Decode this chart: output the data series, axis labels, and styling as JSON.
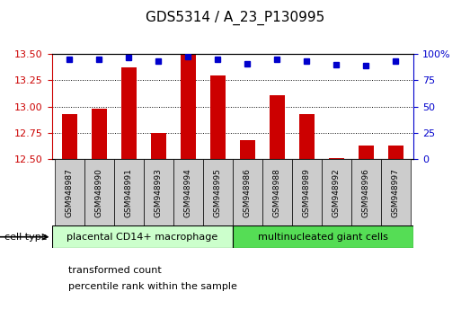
{
  "title": "GDS5314 / A_23_P130995",
  "samples": [
    "GSM948987",
    "GSM948990",
    "GSM948991",
    "GSM948993",
    "GSM948994",
    "GSM948995",
    "GSM948986",
    "GSM948988",
    "GSM948989",
    "GSM948992",
    "GSM948996",
    "GSM948997"
  ],
  "transformed_count": [
    12.93,
    12.98,
    13.37,
    12.75,
    13.5,
    13.3,
    12.68,
    13.11,
    12.93,
    12.51,
    12.63,
    12.63
  ],
  "percentile_rank": [
    95,
    95,
    97,
    93,
    98,
    95,
    91,
    95,
    93,
    90,
    89,
    93
  ],
  "group1_label": "placental CD14+ macrophage",
  "group2_label": "multinucleated giant cells",
  "group1_count": 6,
  "group2_count": 6,
  "ylim_left": [
    12.5,
    13.5
  ],
  "ylim_right": [
    0,
    100
  ],
  "yticks_left": [
    12.5,
    12.75,
    13.0,
    13.25,
    13.5
  ],
  "yticks_right": [
    0,
    25,
    50,
    75,
    100
  ],
  "bar_color": "#cc0000",
  "dot_color": "#0000cc",
  "group1_bg": "#ccffcc",
  "group2_bg": "#55dd55",
  "sample_bg": "#cccccc",
  "legend_bar_label": "transformed count",
  "legend_dot_label": "percentile rank within the sample",
  "cell_type_label": "cell type"
}
